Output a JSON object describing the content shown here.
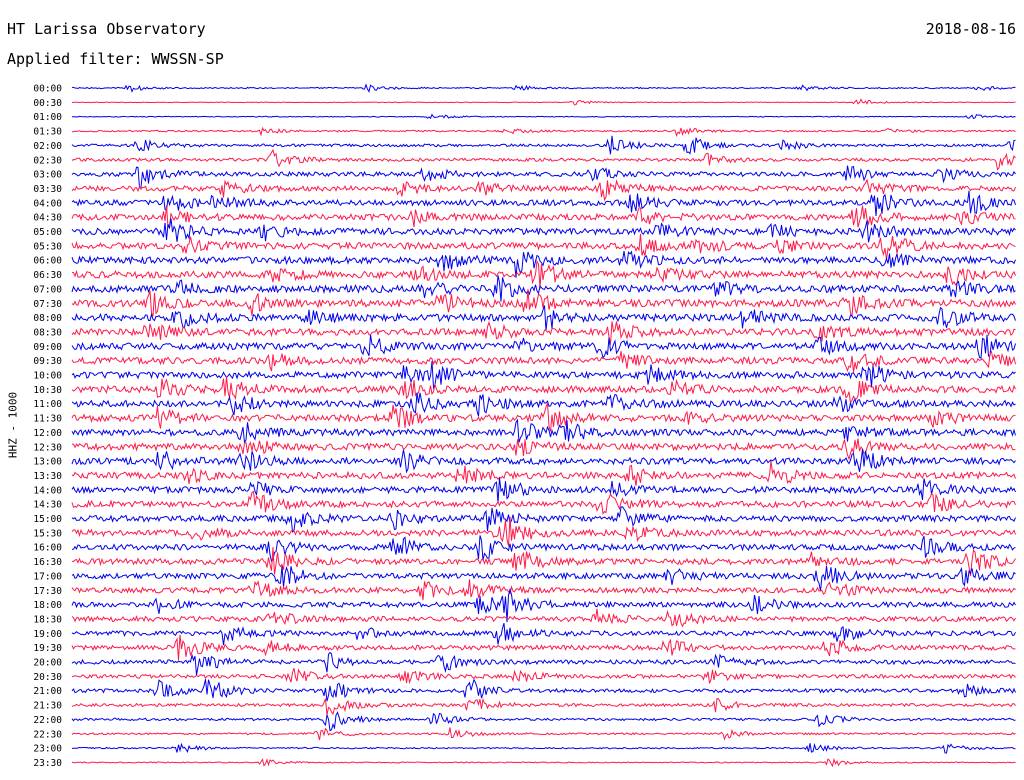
{
  "header": {
    "title": "HT Larissa Observatory",
    "date": "2018-08-16",
    "filter": "Applied filter: WWSSN-SP"
  },
  "chart_data": {
    "type": "line",
    "chart_kind": "helicorder",
    "ylabel": "HHZ - 1000",
    "series_colors": [
      "#0000ee",
      "#ff1a4a"
    ],
    "row_labels": [
      "00:00",
      "00:30",
      "01:00",
      "01:30",
      "02:00",
      "02:30",
      "03:00",
      "03:30",
      "04:00",
      "04:30",
      "05:00",
      "05:30",
      "06:00",
      "06:30",
      "07:00",
      "07:30",
      "08:00",
      "08:30",
      "09:00",
      "09:30",
      "10:00",
      "10:30",
      "11:00",
      "11:30",
      "12:00",
      "12:30",
      "13:00",
      "13:30",
      "14:00",
      "14:30",
      "15:00",
      "15:30",
      "16:00",
      "16:30",
      "17:00",
      "17:30",
      "18:00",
      "18:30",
      "19:00",
      "19:30",
      "20:00",
      "20:30",
      "21:00",
      "21:30",
      "22:00",
      "22:30",
      "23:00",
      "23:30"
    ],
    "noise_level": [
      0.6,
      0.3,
      0.4,
      0.8,
      1.3,
      1.6,
      2.2,
      2.6,
      2.8,
      3.0,
      3.2,
      3.2,
      3.3,
      3.4,
      3.5,
      3.6,
      3.5,
      3.4,
      3.3,
      3.3,
      3.2,
      3.3,
      3.3,
      3.3,
      3.2,
      3.2,
      3.2,
      3.2,
      3.1,
      3.1,
      3.0,
      3.0,
      2.9,
      2.9,
      2.8,
      2.7,
      2.6,
      2.5,
      2.4,
      2.3,
      2.1,
      1.9,
      1.8,
      1.5,
      1.2,
      0.9,
      0.7,
      0.5
    ],
    "events": [
      [
        [
          0.06,
          4
        ],
        [
          0.31,
          4
        ],
        [
          0.47,
          3
        ],
        [
          0.77,
          3
        ],
        [
          0.96,
          3
        ]
      ],
      [
        [
          0.53,
          3
        ],
        [
          0.83,
          4
        ]
      ],
      [
        [
          0.38,
          3
        ],
        [
          0.95,
          4
        ]
      ],
      [
        [
          0.2,
          3
        ],
        [
          0.46,
          3
        ],
        [
          0.64,
          5
        ],
        [
          0.86,
          3
        ]
      ],
      [
        [
          0.07,
          7
        ],
        [
          0.57,
          10
        ],
        [
          0.65,
          12
        ],
        [
          0.75,
          6
        ],
        [
          0.99,
          7
        ]
      ],
      [
        [
          0.21,
          10
        ],
        [
          0.67,
          6
        ],
        [
          0.98,
          9
        ]
      ],
      [
        [
          0.07,
          14
        ],
        [
          0.37,
          9
        ],
        [
          0.55,
          8
        ],
        [
          0.82,
          11
        ],
        [
          0.92,
          7
        ]
      ],
      [
        [
          0.16,
          9
        ],
        [
          0.34,
          10
        ],
        [
          0.43,
          7
        ],
        [
          0.56,
          14
        ],
        [
          0.84,
          9
        ]
      ],
      [
        [
          0.1,
          12
        ],
        [
          0.15,
          10
        ],
        [
          0.59,
          13
        ],
        [
          0.85,
          14
        ],
        [
          0.95,
          12
        ]
      ],
      [
        [
          0.1,
          9
        ],
        [
          0.36,
          8
        ],
        [
          0.6,
          10
        ],
        [
          0.83,
          13
        ],
        [
          0.94,
          8
        ]
      ],
      [
        [
          0.1,
          14
        ],
        [
          0.2,
          9
        ],
        [
          0.62,
          8
        ],
        [
          0.74,
          7
        ],
        [
          0.84,
          12
        ]
      ],
      [
        [
          0.12,
          9
        ],
        [
          0.6,
          10
        ],
        [
          0.66,
          8
        ],
        [
          0.75,
          9
        ],
        [
          0.86,
          15
        ]
      ],
      [
        [
          0.39,
          12
        ],
        [
          0.47,
          16
        ],
        [
          0.58,
          13
        ],
        [
          0.86,
          9
        ]
      ],
      [
        [
          0.21,
          9
        ],
        [
          0.36,
          10
        ],
        [
          0.49,
          15
        ],
        [
          0.62,
          9
        ],
        [
          0.93,
          13
        ]
      ],
      [
        [
          0.11,
          8
        ],
        [
          0.37,
          10
        ],
        [
          0.45,
          12
        ],
        [
          0.68,
          8
        ],
        [
          0.93,
          9
        ]
      ],
      [
        [
          0.08,
          14
        ],
        [
          0.19,
          10
        ],
        [
          0.39,
          11
        ],
        [
          0.48,
          13
        ],
        [
          0.82,
          14
        ]
      ],
      [
        [
          0.11,
          11
        ],
        [
          0.25,
          9
        ],
        [
          0.5,
          12
        ],
        [
          0.71,
          10
        ],
        [
          0.92,
          12
        ]
      ],
      [
        [
          0.08,
          10
        ],
        [
          0.44,
          9
        ],
        [
          0.57,
          11
        ],
        [
          0.79,
          8
        ]
      ],
      [
        [
          0.31,
          12
        ],
        [
          0.47,
          9
        ],
        [
          0.56,
          10
        ],
        [
          0.79,
          9
        ],
        [
          0.96,
          14
        ]
      ],
      [
        [
          0.21,
          8
        ],
        [
          0.58,
          9
        ],
        [
          0.82,
          13
        ],
        [
          0.97,
          10
        ]
      ],
      [
        [
          0.35,
          12
        ],
        [
          0.38,
          10
        ],
        [
          0.61,
          11
        ],
        [
          0.84,
          14
        ]
      ],
      [
        [
          0.09,
          12
        ],
        [
          0.16,
          13
        ],
        [
          0.35,
          12
        ],
        [
          0.63,
          10
        ],
        [
          0.82,
          14
        ]
      ],
      [
        [
          0.17,
          10
        ],
        [
          0.36,
          13
        ],
        [
          0.43,
          10
        ],
        [
          0.57,
          9
        ],
        [
          0.81,
          9
        ]
      ],
      [
        [
          0.09,
          11
        ],
        [
          0.34,
          14
        ],
        [
          0.5,
          15
        ],
        [
          0.64,
          8
        ],
        [
          0.91,
          8
        ]
      ],
      [
        [
          0.18,
          10
        ],
        [
          0.47,
          14
        ],
        [
          0.52,
          11
        ],
        [
          0.82,
          9
        ]
      ],
      [
        [
          0.18,
          12
        ],
        [
          0.47,
          10
        ],
        [
          0.82,
          12
        ]
      ],
      [
        [
          0.09,
          14
        ],
        [
          0.18,
          12
        ],
        [
          0.35,
          10
        ],
        [
          0.83,
          14
        ]
      ],
      [
        [
          0.12,
          7
        ],
        [
          0.41,
          10
        ],
        [
          0.59,
          11
        ],
        [
          0.74,
          13
        ]
      ],
      [
        [
          0.19,
          9
        ],
        [
          0.45,
          14
        ],
        [
          0.57,
          8
        ],
        [
          0.9,
          11
        ]
      ],
      [
        [
          0.19,
          12
        ],
        [
          0.56,
          13
        ],
        [
          0.91,
          9
        ]
      ],
      [
        [
          0.23,
          13
        ],
        [
          0.34,
          10
        ],
        [
          0.44,
          13
        ],
        [
          0.58,
          11
        ]
      ],
      [
        [
          0.13,
          8
        ],
        [
          0.45,
          9
        ],
        [
          0.46,
          12
        ],
        [
          0.59,
          8
        ]
      ],
      [
        [
          0.21,
          12
        ],
        [
          0.34,
          14
        ],
        [
          0.43,
          15
        ],
        [
          0.9,
          10
        ]
      ],
      [
        [
          0.21,
          14
        ],
        [
          0.47,
          15
        ],
        [
          0.78,
          9
        ],
        [
          0.95,
          13
        ]
      ],
      [
        [
          0.22,
          14
        ],
        [
          0.63,
          10
        ],
        [
          0.79,
          16
        ],
        [
          0.94,
          12
        ]
      ],
      [
        [
          0.19,
          11
        ],
        [
          0.37,
          10
        ],
        [
          0.42,
          9
        ],
        [
          0.8,
          10
        ]
      ],
      [
        [
          0.09,
          8
        ],
        [
          0.43,
          11
        ],
        [
          0.46,
          14
        ],
        [
          0.72,
          10
        ]
      ],
      [
        [
          0.21,
          9
        ],
        [
          0.55,
          11
        ],
        [
          0.63,
          12
        ]
      ],
      [
        [
          0.16,
          10
        ],
        [
          0.3,
          8
        ],
        [
          0.45,
          13
        ],
        [
          0.81,
          10
        ]
      ],
      [
        [
          0.11,
          16
        ],
        [
          0.2,
          10
        ],
        [
          0.63,
          10
        ],
        [
          0.8,
          12
        ]
      ],
      [
        [
          0.13,
          14
        ],
        [
          0.27,
          9
        ],
        [
          0.39,
          11
        ],
        [
          0.68,
          8
        ]
      ],
      [
        [
          0.23,
          9
        ],
        [
          0.35,
          9
        ],
        [
          0.47,
          8
        ],
        [
          0.67,
          9
        ]
      ],
      [
        [
          0.09,
          10
        ],
        [
          0.14,
          15
        ],
        [
          0.27,
          13
        ],
        [
          0.42,
          13
        ],
        [
          0.94,
          9
        ]
      ],
      [
        [
          0.27,
          13
        ],
        [
          0.42,
          12
        ],
        [
          0.68,
          7
        ]
      ],
      [
        [
          0.27,
          12
        ],
        [
          0.38,
          10
        ],
        [
          0.79,
          7
        ]
      ],
      [
        [
          0.26,
          7
        ],
        [
          0.4,
          6
        ],
        [
          0.69,
          5
        ]
      ],
      [
        [
          0.11,
          6
        ],
        [
          0.78,
          5
        ],
        [
          0.92,
          6
        ]
      ],
      [
        [
          0.2,
          4
        ],
        [
          0.8,
          5
        ]
      ]
    ]
  }
}
